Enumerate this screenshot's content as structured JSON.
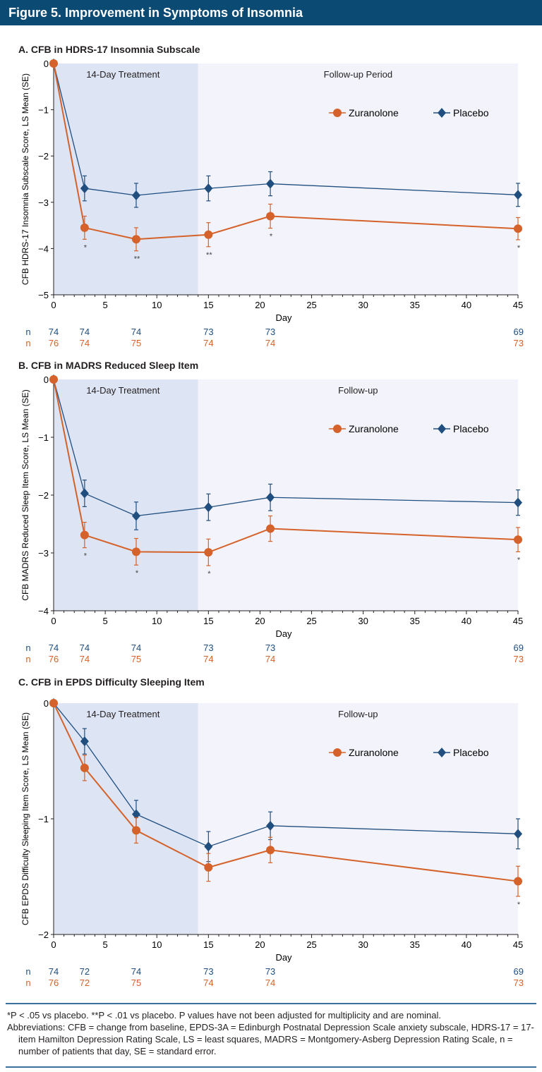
{
  "header": {
    "title": "Figure 5. Improvement in Symptoms of Insomnia"
  },
  "colors": {
    "zuranolone": "#d4622a",
    "placebo": "#1f4e7f",
    "header": "#0b4a72",
    "treatment_shade": "#dde4f4",
    "followup_shade": "#f3f4fb"
  },
  "chart_data": [
    {
      "type": "line",
      "title": "A. CFB in HDRS-17 Insomnia Subscale",
      "xlabel": "Day",
      "ylabel": "CFB HDRS-17 Insomnia Subscale Score, LS Mean (SE)",
      "xlim": [
        0,
        45
      ],
      "ylim": [
        -5,
        0
      ],
      "xticks": [
        0,
        5,
        10,
        15,
        20,
        25,
        30,
        35,
        40,
        45
      ],
      "yticks": [
        0,
        -1,
        -2,
        -3,
        -4,
        -5
      ],
      "periods": [
        {
          "label": "14-Day Treatment",
          "range": [
            0,
            14
          ]
        },
        {
          "label": "Follow-up Period",
          "range": [
            14,
            45
          ]
        }
      ],
      "legend": "top-right",
      "x": [
        0,
        3,
        8,
        15,
        21,
        45
      ],
      "series": [
        {
          "name": "Zuranolone",
          "marker": "circle",
          "values": [
            0,
            -3.55,
            -3.8,
            -3.7,
            -3.3,
            -3.57
          ],
          "se": [
            0,
            0.25,
            0.25,
            0.26,
            0.26,
            0.24
          ]
        },
        {
          "name": "Placebo",
          "marker": "diamond",
          "values": [
            0,
            -2.7,
            -2.85,
            -2.7,
            -2.6,
            -2.84
          ],
          "se": [
            0,
            0.27,
            0.26,
            0.27,
            0.26,
            0.25
          ]
        }
      ],
      "significance": [
        "",
        "*",
        "**",
        "**",
        "*",
        "*"
      ],
      "n": {
        "label": "n",
        "placebo": [
          "74",
          "74",
          "74",
          "73",
          "73",
          "69"
        ],
        "zuranolone": [
          "76",
          "74",
          "75",
          "74",
          "74",
          "73"
        ]
      }
    },
    {
      "type": "line",
      "title": "B. CFB in MADRS Reduced Sleep Item",
      "xlabel": "Day",
      "ylabel": "CFB MADRS Reduced Sleep Item Score, LS Mean (SE)",
      "xlim": [
        0,
        45
      ],
      "ylim": [
        -4,
        0
      ],
      "xticks": [
        0,
        5,
        10,
        15,
        20,
        25,
        30,
        35,
        40,
        45
      ],
      "yticks": [
        0,
        -1,
        -2,
        -3,
        -4
      ],
      "periods": [
        {
          "label": "14-Day Treatment",
          "range": [
            0,
            14
          ]
        },
        {
          "label": "Follow-up",
          "range": [
            14,
            45
          ]
        }
      ],
      "legend": "top-right",
      "x": [
        0,
        3,
        8,
        15,
        21,
        45
      ],
      "series": [
        {
          "name": "Zuranolone",
          "marker": "circle",
          "values": [
            0,
            -2.69,
            -2.98,
            -2.99,
            -2.58,
            -2.77
          ],
          "se": [
            0,
            0.22,
            0.23,
            0.23,
            0.22,
            0.21
          ]
        },
        {
          "name": "Placebo",
          "marker": "diamond",
          "values": [
            0,
            -1.97,
            -2.36,
            -2.21,
            -2.04,
            -2.13
          ],
          "se": [
            0,
            0.23,
            0.24,
            0.23,
            0.23,
            0.22
          ]
        }
      ],
      "significance": [
        "",
        "*",
        "*",
        "*",
        "",
        "*"
      ],
      "n": {
        "label": "n",
        "placebo": [
          "74",
          "74",
          "74",
          "73",
          "73",
          "69"
        ],
        "zuranolone": [
          "76",
          "74",
          "75",
          "74",
          "74",
          "73"
        ]
      }
    },
    {
      "type": "line",
      "title": "C. CFB in EPDS Difficulty Sleeping Item",
      "xlabel": "Day",
      "ylabel": "CFB EPDS Difficulty Sleeping Item Score, LS Mean (SE)",
      "xlim": [
        0,
        45
      ],
      "ylim": [
        -2,
        0
      ],
      "xticks": [
        0,
        5,
        10,
        15,
        20,
        25,
        30,
        35,
        40,
        45
      ],
      "yticks": [
        0,
        -1,
        -2
      ],
      "periods": [
        {
          "label": "14-Day Treatment",
          "range": [
            0,
            14
          ]
        },
        {
          "label": "Follow-up",
          "range": [
            14,
            45
          ]
        }
      ],
      "legend": "top-right",
      "x": [
        0,
        3,
        8,
        15,
        21,
        45
      ],
      "series": [
        {
          "name": "Zuranolone",
          "marker": "circle",
          "values": [
            0,
            -0.56,
            -1.1,
            -1.42,
            -1.27,
            -1.54
          ],
          "se": [
            0,
            0.11,
            0.11,
            0.12,
            0.11,
            0.13
          ]
        },
        {
          "name": "Placebo",
          "marker": "diamond",
          "values": [
            0,
            -0.33,
            -0.96,
            -1.24,
            -1.06,
            -1.13
          ],
          "se": [
            0,
            0.11,
            0.12,
            0.13,
            0.12,
            0.13
          ]
        }
      ],
      "significance": [
        "",
        "",
        "",
        "",
        "",
        "*"
      ],
      "n": {
        "label": "n",
        "placebo": [
          "74",
          "72",
          "74",
          "73",
          "73",
          "69"
        ],
        "zuranolone": [
          "76",
          "72",
          "75",
          "74",
          "74",
          "73"
        ]
      }
    }
  ],
  "footnotes": {
    "significance": "*P < .05 vs placebo.   **P < .01 vs placebo. P values have not been adjusted for multiplicity and are nominal.",
    "abbreviations": "Abbreviations: CFB = change from baseline, EPDS-3A = Edinburgh Postnatal Depression Scale anxiety subscale, HDRS-17 = 17-item Hamilton Depression Rating Scale, LS = least squares, MADRS = Montgomery-Asberg Depression Rating Scale, n = number of patients that day, SE = standard error."
  }
}
